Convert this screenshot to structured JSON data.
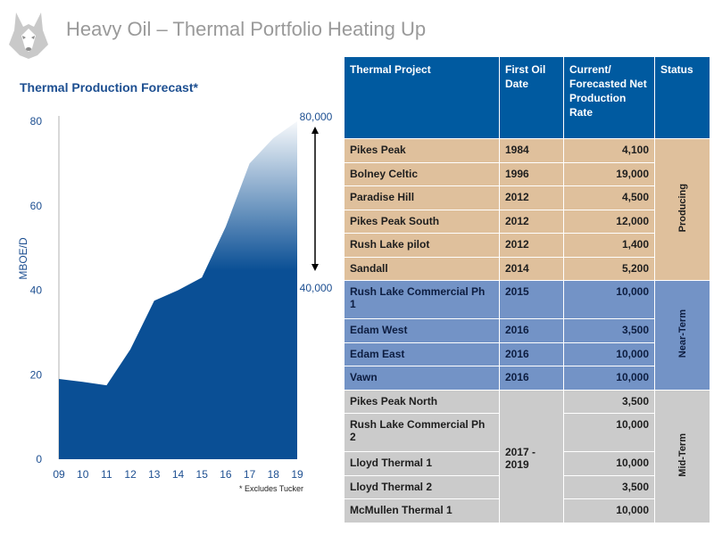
{
  "header": {
    "title": "Heavy Oil – Thermal Portfolio Heating Up",
    "logo_icon": "husky-dog-head-icon"
  },
  "chart_data": {
    "type": "area",
    "title": "Thermal Production Forecast*",
    "xlabel": "",
    "ylabel": "MBOE/D",
    "categories": [
      "09",
      "10",
      "11",
      "12",
      "13",
      "14",
      "15",
      "16",
      "17",
      "18",
      "19"
    ],
    "values": [
      19,
      18.3,
      17.5,
      26,
      37.5,
      40,
      43,
      55,
      70,
      76,
      80
    ],
    "ylim": [
      0,
      80
    ],
    "yticks": [
      "0",
      "20",
      "40",
      "60",
      "80"
    ],
    "grid": false,
    "fill_color": "#0a4f95",
    "annotations": {
      "upper_label": "80,000",
      "lower_label": "40,000"
    },
    "footnote": "* Excludes Tucker"
  },
  "table": {
    "headers": [
      "Thermal Project",
      "First Oil Date",
      "Current/ Forecasted Net Production Rate",
      "Status"
    ],
    "groups": [
      {
        "status": "Producing",
        "color": "#dfc09c",
        "rows": [
          {
            "project": "Pikes Peak",
            "date": "1984",
            "rate": "4,100"
          },
          {
            "project": "Bolney Celtic",
            "date": "1996",
            "rate": "19,000"
          },
          {
            "project": "Paradise Hill",
            "date": "2012",
            "rate": "4,500"
          },
          {
            "project": "Pikes Peak South",
            "date": "2012",
            "rate": "12,000"
          },
          {
            "project": "Rush Lake pilot",
            "date": "2012",
            "rate": "1,400"
          },
          {
            "project": "Sandall",
            "date": "2014",
            "rate": "5,200"
          }
        ]
      },
      {
        "status": "Near-Term",
        "color": "#7393c6",
        "rows": [
          {
            "project": "Rush Lake Commercial Ph 1",
            "date": "2015",
            "rate": "10,000"
          },
          {
            "project": "Edam West",
            "date": "2016",
            "rate": "3,500"
          },
          {
            "project": "Edam East",
            "date": "2016",
            "rate": "10,000"
          },
          {
            "project": "Vawn",
            "date": "2016",
            "rate": "10,000"
          }
        ]
      },
      {
        "status": "Mid-Term",
        "color": "#cbcbcb",
        "date": "2017 - 2019",
        "rows": [
          {
            "project": "Pikes Peak North",
            "rate": "3,500"
          },
          {
            "project": "Rush Lake Commercial Ph 2",
            "rate": "10,000"
          },
          {
            "project": "Lloyd Thermal 1",
            "rate": "10,000"
          },
          {
            "project": "Lloyd Thermal 2",
            "rate": "3,500"
          },
          {
            "project": "McMullen Thermal 1",
            "rate": "10,000"
          }
        ]
      }
    ]
  }
}
